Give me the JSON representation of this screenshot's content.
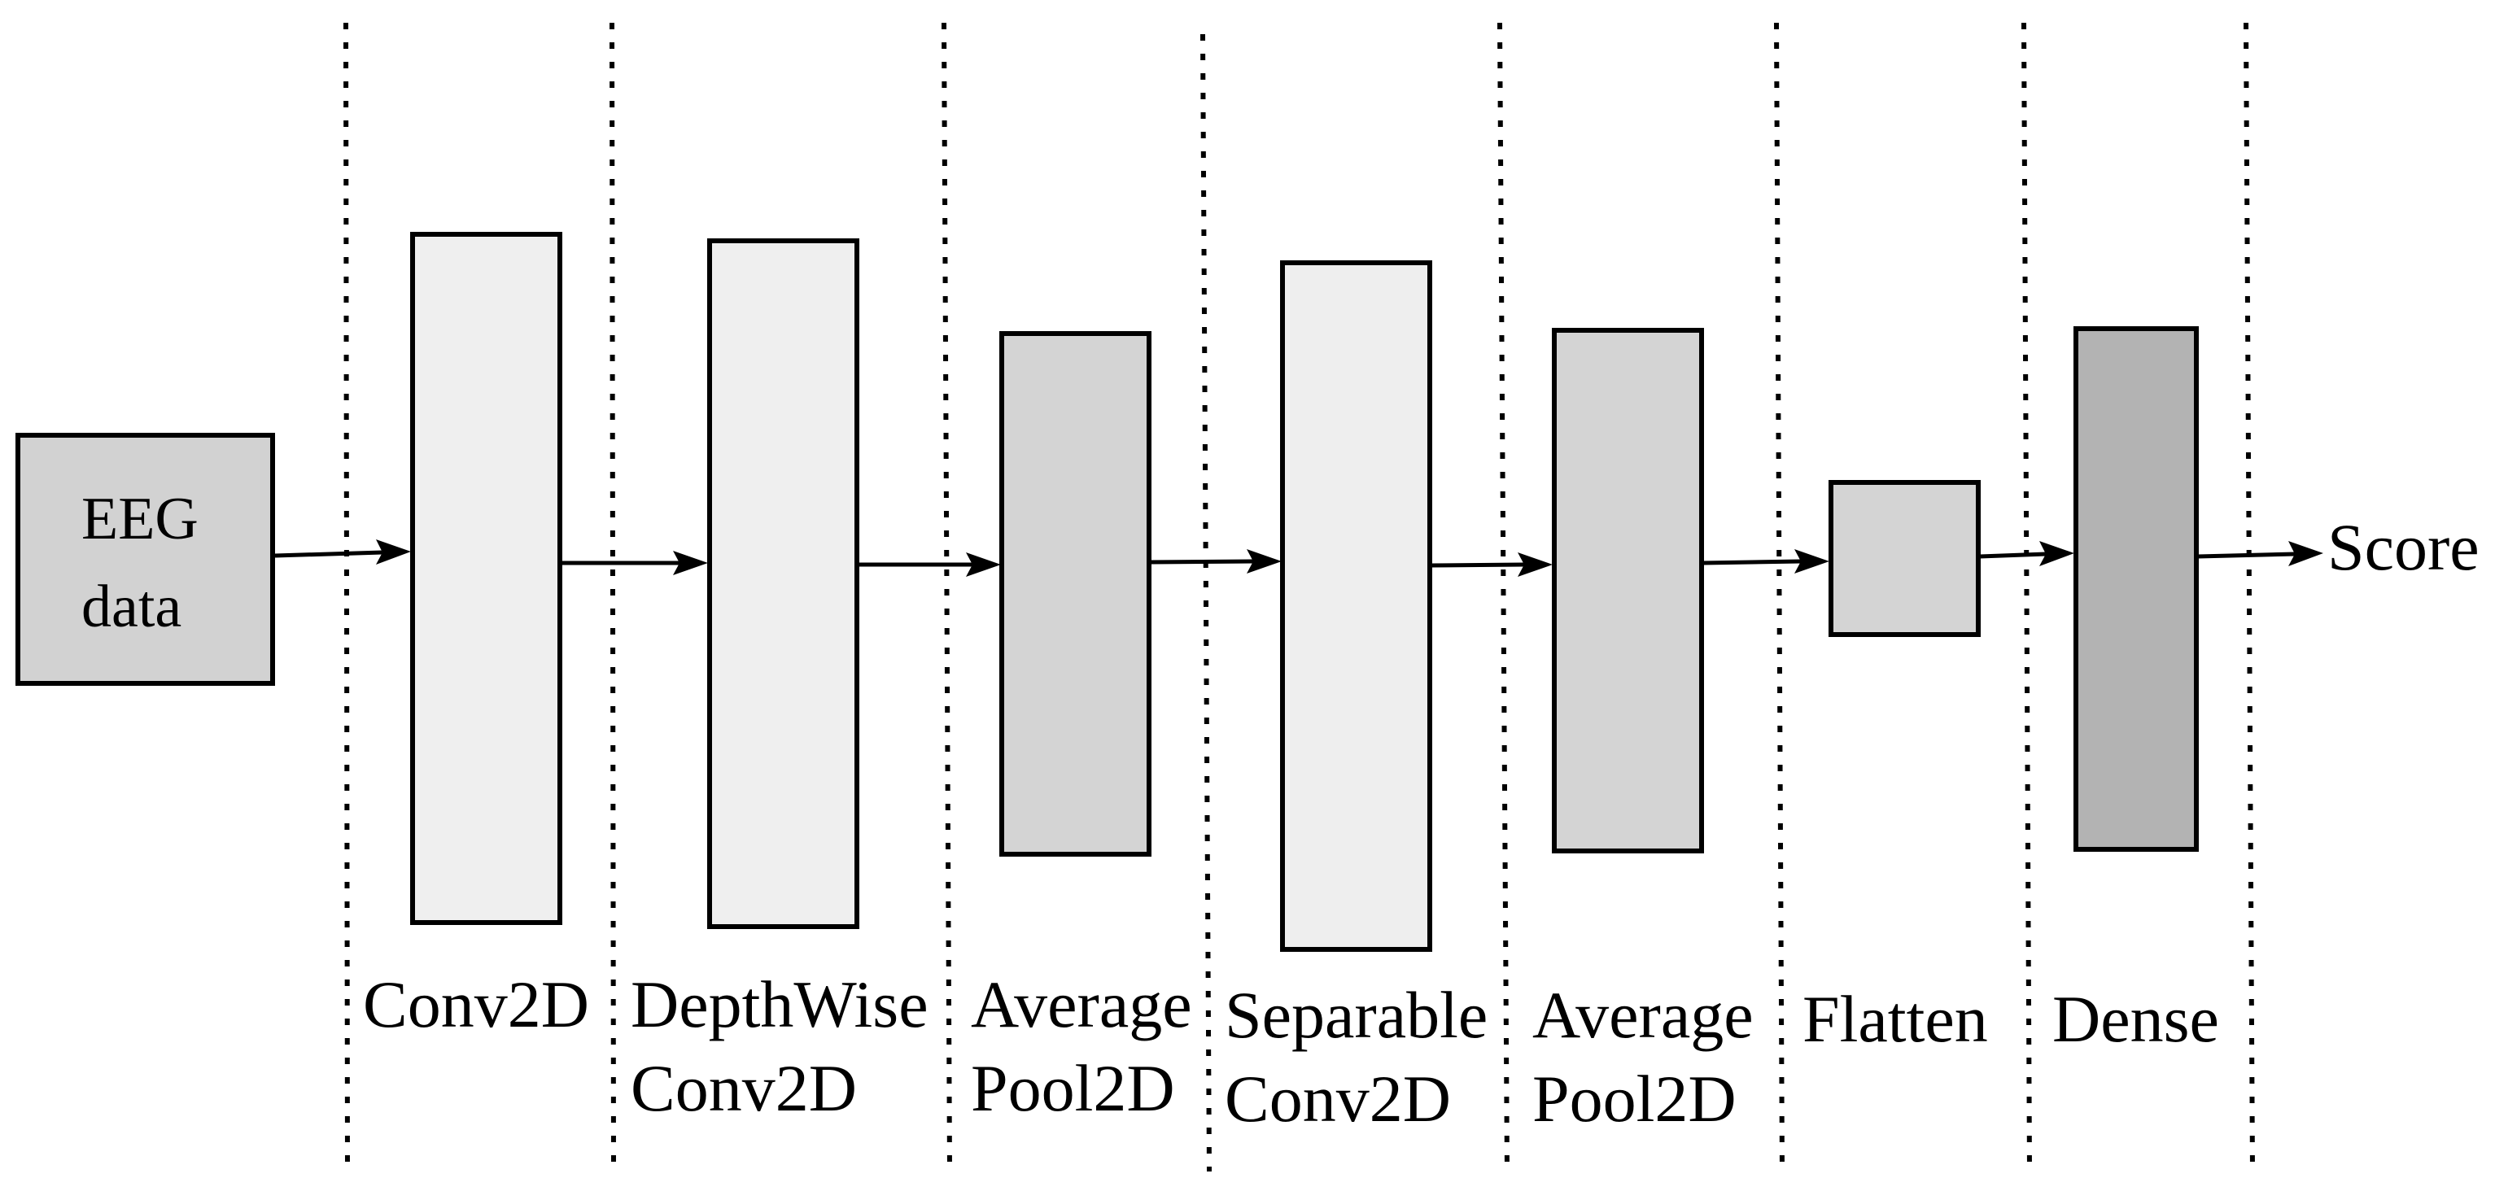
{
  "diagram": {
    "input": {
      "line1": "EEG",
      "line2": "data",
      "fill": "#d2d2d2"
    },
    "output_label": "Score",
    "layers": [
      {
        "id": "conv2d",
        "lines": [
          "Conv2D"
        ],
        "fill": "#efefef"
      },
      {
        "id": "depthwise",
        "lines": [
          "DepthWise",
          "Conv2D"
        ],
        "fill": "#efefef"
      },
      {
        "id": "avgpool1",
        "lines": [
          "Average",
          "Pool2D"
        ],
        "fill": "#d4d4d4"
      },
      {
        "id": "separable",
        "lines": [
          "Separable",
          "Conv2D"
        ],
        "fill": "#eeeeee"
      },
      {
        "id": "avgpool2",
        "lines": [
          "Average",
          "Pool2D"
        ],
        "fill": "#d4d4d4"
      },
      {
        "id": "flatten",
        "lines": [
          "Flatten"
        ],
        "fill": "#d4d4d4"
      },
      {
        "id": "dense",
        "lines": [
          "Dense"
        ],
        "fill": "#b3b3b3"
      }
    ]
  }
}
